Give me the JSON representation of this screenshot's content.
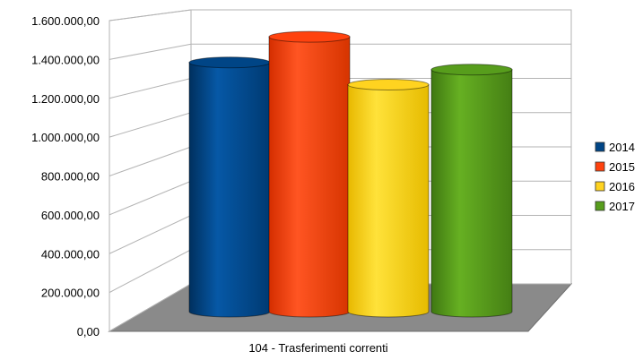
{
  "chart_data": {
    "type": "bar",
    "title": "",
    "xlabel": "",
    "ylabel": "",
    "categories": [
      "104 - Trasferimenti correnti"
    ],
    "series": [
      {
        "name": "2014",
        "values": [
          1405000
        ],
        "color": "#004586"
      },
      {
        "name": "2015",
        "values": [
          1550000
        ],
        "color": "#ff420e"
      },
      {
        "name": "2016",
        "values": [
          1280000
        ],
        "color": "#ffd320"
      },
      {
        "name": "2017",
        "values": [
          1365000
        ],
        "color": "#579d1c"
      }
    ],
    "ylim": [
      0,
      1600000
    ],
    "yticks": [
      "0,00",
      "200.000,00",
      "400.000,00",
      "600.000,00",
      "800.000,00",
      "1.000.000,00",
      "1.200.000,00",
      "1.400.000,00",
      "1.600.000,00"
    ],
    "grid": true,
    "legend": "right",
    "style": "3d-cylinder"
  }
}
